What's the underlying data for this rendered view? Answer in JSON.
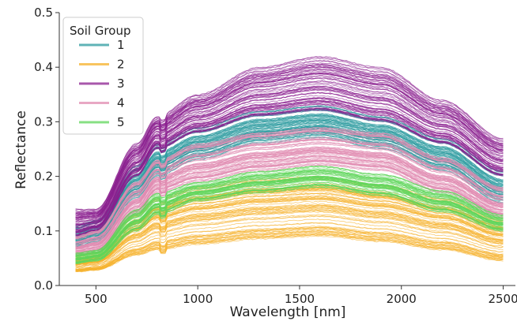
{
  "chart_data": {
    "type": "line",
    "title": "",
    "xlabel": "Wavelength [nm]",
    "ylabel": "Reflectance",
    "xlim": [
      320,
      2560
    ],
    "ylim": [
      0,
      0.5
    ],
    "x_ticks": [
      500,
      1000,
      1500,
      2000,
      2500
    ],
    "y_ticks": [
      0.0,
      0.1,
      0.2,
      0.3,
      0.4,
      0.5
    ],
    "x_tick_labels": [
      "500",
      "1000",
      "1500",
      "2000",
      "2500"
    ],
    "y_tick_labels": [
      "0.0",
      "0.1",
      "0.2",
      "0.3",
      "0.4",
      "0.5"
    ],
    "grid": false,
    "legend": {
      "title": "Soil Group",
      "placement": "top-left",
      "entries": [
        {
          "label": "1",
          "color": "#2a9a9e"
        },
        {
          "label": "2",
          "color": "#f6b02a"
        },
        {
          "label": "3",
          "color": "#8b1f8f"
        },
        {
          "label": "4",
          "color": "#e08bb0"
        },
        {
          "label": "5",
          "color": "#5fd65a"
        }
      ]
    },
    "series": [
      {
        "name": "1",
        "color": "#2a9a9e",
        "x": [
          400,
          500,
          700,
          800,
          1000,
          1300,
          1600,
          1900,
          2200,
          2500
        ],
        "y_mean": [
          0.09,
          0.1,
          0.19,
          0.23,
          0.26,
          0.29,
          0.3,
          0.28,
          0.24,
          0.18
        ],
        "y_min": [
          0.07,
          0.08,
          0.16,
          0.2,
          0.23,
          0.26,
          0.27,
          0.25,
          0.21,
          0.15
        ],
        "y_max": [
          0.11,
          0.12,
          0.22,
          0.26,
          0.29,
          0.32,
          0.33,
          0.31,
          0.27,
          0.21
        ]
      },
      {
        "name": "2",
        "color": "#f6b02a",
        "x": [
          400,
          500,
          700,
          800,
          1000,
          1300,
          1600,
          1900,
          2200,
          2500
        ],
        "y_mean": [
          0.04,
          0.045,
          0.1,
          0.13,
          0.15,
          0.165,
          0.17,
          0.155,
          0.13,
          0.095
        ],
        "y_min": [
          0.025,
          0.028,
          0.055,
          0.065,
          0.075,
          0.085,
          0.09,
          0.08,
          0.065,
          0.045
        ],
        "y_max": [
          0.055,
          0.06,
          0.13,
          0.16,
          0.18,
          0.195,
          0.2,
          0.185,
          0.16,
          0.12
        ]
      },
      {
        "name": "3",
        "color": "#8b1f8f",
        "x": [
          400,
          500,
          700,
          800,
          1000,
          1300,
          1600,
          1900,
          2200,
          2500
        ],
        "y_mean": [
          0.11,
          0.12,
          0.23,
          0.28,
          0.31,
          0.35,
          0.36,
          0.34,
          0.3,
          0.23
        ],
        "y_min": [
          0.09,
          0.1,
          0.2,
          0.25,
          0.28,
          0.31,
          0.32,
          0.3,
          0.26,
          0.2
        ],
        "y_max": [
          0.14,
          0.14,
          0.26,
          0.31,
          0.35,
          0.4,
          0.42,
          0.4,
          0.34,
          0.27
        ]
      },
      {
        "name": "4",
        "color": "#e08bb0",
        "x": [
          400,
          500,
          700,
          800,
          1000,
          1300,
          1600,
          1900,
          2200,
          2500
        ],
        "y_mean": [
          0.07,
          0.08,
          0.16,
          0.2,
          0.22,
          0.245,
          0.25,
          0.24,
          0.2,
          0.15
        ],
        "y_min": [
          0.055,
          0.06,
          0.13,
          0.17,
          0.19,
          0.21,
          0.22,
          0.21,
          0.17,
          0.125
        ],
        "y_max": [
          0.09,
          0.1,
          0.19,
          0.23,
          0.26,
          0.28,
          0.29,
          0.28,
          0.235,
          0.18
        ]
      },
      {
        "name": "5",
        "color": "#5fd65a",
        "x": [
          400,
          500,
          700,
          800,
          1000,
          1300,
          1600,
          1900,
          2200,
          2500
        ],
        "y_mean": [
          0.05,
          0.055,
          0.12,
          0.15,
          0.175,
          0.19,
          0.2,
          0.185,
          0.155,
          0.115
        ],
        "y_min": [
          0.04,
          0.045,
          0.1,
          0.13,
          0.155,
          0.17,
          0.18,
          0.165,
          0.135,
          0.1
        ],
        "y_max": [
          0.06,
          0.065,
          0.14,
          0.17,
          0.19,
          0.21,
          0.22,
          0.205,
          0.175,
          0.13
        ]
      }
    ]
  }
}
